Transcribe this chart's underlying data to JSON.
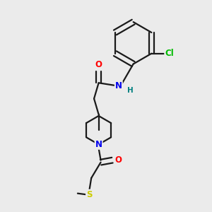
{
  "background_color": "#ebebeb",
  "bond_color": "#1a1a1a",
  "atom_colors": {
    "O": "#ff0000",
    "N": "#0000ee",
    "H": "#008080",
    "Cl": "#00bb00",
    "S": "#cccc00"
  },
  "line_width": 1.6,
  "font_size": 8.5
}
